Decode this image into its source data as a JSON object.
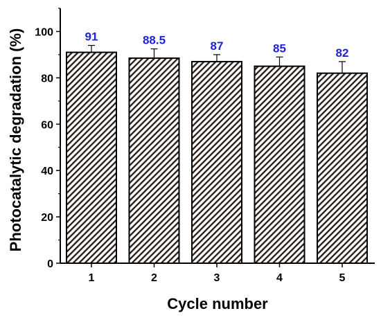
{
  "chart_data": {
    "type": "bar",
    "categories": [
      "1",
      "2",
      "3",
      "4",
      "5"
    ],
    "values": [
      91,
      88.5,
      87,
      85,
      82
    ],
    "value_labels": [
      "91",
      "88.5",
      "87",
      "85",
      "82"
    ],
    "error": [
      3,
      4,
      3,
      4,
      5
    ],
    "xlabel": "Cycle number",
    "ylabel": "Photocatalytic degradation (%)",
    "ylim": [
      0,
      110
    ],
    "yticks": [
      0,
      20,
      40,
      60,
      80,
      100
    ],
    "ytick_labels": [
      "0",
      "20",
      "40",
      "60",
      "80",
      "100"
    ],
    "bar_fill_pattern": "diagonal-hatch",
    "colors": {
      "bar_stripe": "#2b2019",
      "bar_stripe_light": "#ffffff",
      "bar_outline": "#000000",
      "data_label": "#1f1fd6",
      "error_bar": "#000000"
    }
  }
}
